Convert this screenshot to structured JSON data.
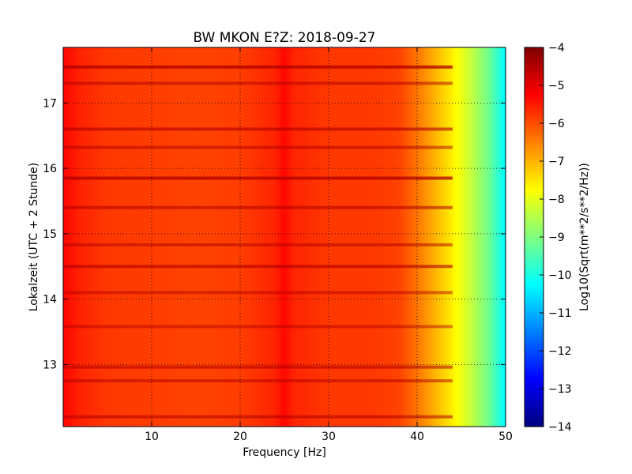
{
  "chart_data": {
    "type": "heatmap",
    "title": "BW MKON E?Z: 2018-09-27",
    "xlabel": "Frequency [Hz]",
    "ylabel": "Lokalzeit (UTC + 2 Stunde)",
    "xlim": [
      0,
      50
    ],
    "ylim": [
      17.85,
      12.05
    ],
    "xticks": [
      10,
      20,
      30,
      40,
      50
    ],
    "yticks": [
      13,
      14,
      15,
      16,
      17
    ],
    "grid": true,
    "colormap": "jet",
    "colorbar": {
      "label": "Log10(Sqrt(m**2/s**2/Hz))",
      "min": -14,
      "max": -4,
      "ticks": [
        -4,
        -5,
        -6,
        -7,
        -8,
        -9,
        -10,
        -11,
        -12,
        -13,
        -14
      ]
    },
    "spectrum_profile": {
      "frequency_hz": [
        0,
        2,
        5,
        10,
        15,
        20,
        24,
        25,
        26,
        30,
        35,
        38,
        40,
        42,
        44,
        46,
        48,
        50
      ],
      "log10_amplitude": [
        -5.3,
        -5.6,
        -5.8,
        -5.85,
        -5.9,
        -5.85,
        -5.6,
        -5.3,
        -5.6,
        -5.8,
        -5.8,
        -5.9,
        -6.4,
        -7.0,
        -7.6,
        -8.3,
        -9.1,
        -10.3
      ]
    },
    "time_events": [
      {
        "time": 12.2,
        "level": 0.6
      },
      {
        "time": 12.75,
        "level": 0.5
      },
      {
        "time": 12.96,
        "level": 0.6
      },
      {
        "time": 13.58,
        "level": 0.4
      },
      {
        "time": 14.1,
        "level": 0.4
      },
      {
        "time": 14.5,
        "level": 0.7
      },
      {
        "time": 14.83,
        "level": 0.5
      },
      {
        "time": 15.4,
        "level": 0.6
      },
      {
        "time": 15.85,
        "level": 1.0
      },
      {
        "time": 16.32,
        "level": 0.5
      },
      {
        "time": 16.6,
        "level": 0.7
      },
      {
        "time": 17.3,
        "level": 0.5
      },
      {
        "time": 17.55,
        "level": 1.0
      }
    ]
  }
}
